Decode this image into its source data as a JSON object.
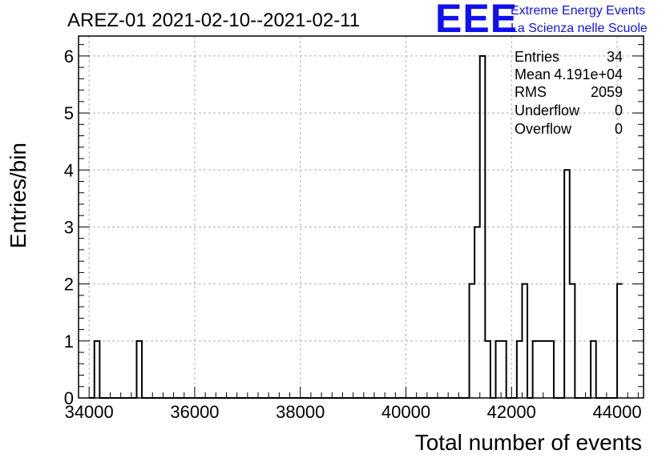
{
  "chart_data": {
    "type": "bar",
    "title": "AREZ-01 2021-02-10--2021-02-11",
    "xlabel": "Total number of events",
    "ylabel": "Entries/bin",
    "xlim": [
      33800,
      44500
    ],
    "ylim": [
      0,
      6.35
    ],
    "grid": true,
    "bin_edges": [
      34000,
      34100,
      34200,
      34300,
      34400,
      34500,
      34600,
      34700,
      34800,
      34900,
      35000,
      35100,
      35200,
      35300,
      35400,
      35500,
      35600,
      35700,
      35800,
      35900,
      36000,
      36100,
      36200,
      36300,
      36400,
      36500,
      36600,
      36700,
      36800,
      36900,
      37000,
      37100,
      37200,
      37300,
      37400,
      37500,
      37600,
      37700,
      37800,
      37900,
      38000,
      38100,
      38200,
      38300,
      38400,
      38500,
      38600,
      38700,
      38800,
      38900,
      39000,
      39100,
      39200,
      39300,
      39400,
      39500,
      39600,
      39700,
      39800,
      39900,
      40000,
      40100,
      40200,
      40300,
      40400,
      40500,
      40600,
      40700,
      40800,
      40900,
      41000,
      41100,
      41200,
      41300,
      41400,
      41500,
      41600,
      41700,
      41800,
      41900,
      42000,
      42100,
      42200,
      42300,
      42400,
      42500,
      42600,
      42700,
      42800,
      42900,
      43000,
      43100,
      43200,
      43300,
      43400,
      43500,
      43600,
      43700,
      43800,
      43900,
      44000,
      44100
    ],
    "values": [
      0,
      1,
      0,
      0,
      0,
      0,
      0,
      0,
      0,
      1,
      0,
      0,
      0,
      0,
      0,
      0,
      0,
      0,
      0,
      0,
      0,
      0,
      0,
      0,
      0,
      0,
      0,
      0,
      0,
      0,
      0,
      0,
      0,
      0,
      0,
      0,
      0,
      0,
      0,
      0,
      0,
      0,
      0,
      0,
      0,
      0,
      0,
      0,
      0,
      0,
      0,
      0,
      0,
      0,
      0,
      0,
      0,
      0,
      0,
      0,
      0,
      0,
      0,
      0,
      0,
      0,
      0,
      0,
      0,
      0,
      0,
      0,
      2,
      3,
      6,
      1,
      0,
      1,
      1,
      0,
      0,
      1,
      2,
      0,
      1,
      1,
      1,
      1,
      0,
      0,
      4,
      2,
      0,
      0,
      0,
      1,
      0,
      0,
      0,
      0,
      2,
      2
    ],
    "x_ticks": [
      34000,
      36000,
      38000,
      40000,
      42000,
      44000
    ],
    "x_tick_labels": [
      "34000",
      "36000",
      "38000",
      "40000",
      "42000",
      "44000"
    ],
    "y_ticks": [
      0,
      1,
      2,
      3,
      4,
      5,
      6
    ],
    "y_tick_labels": [
      "0",
      "1",
      "2",
      "3",
      "4",
      "5",
      "6"
    ]
  },
  "stats": [
    {
      "label": "Entries",
      "value": "34"
    },
    {
      "label": "Mean",
      "value": "4.191e+04"
    },
    {
      "label": "RMS",
      "value": "2059"
    },
    {
      "label": "Underflow",
      "value": "0"
    },
    {
      "label": "Overflow",
      "value": "0"
    }
  ],
  "logo": {
    "letters": "EEE",
    "line1": "Extreme Energy Events",
    "line2": "La Scienza nelle Scuole"
  },
  "colors": {
    "histogram": "#000000",
    "grid": "#b0b0b0",
    "logo": "#1010ee"
  }
}
